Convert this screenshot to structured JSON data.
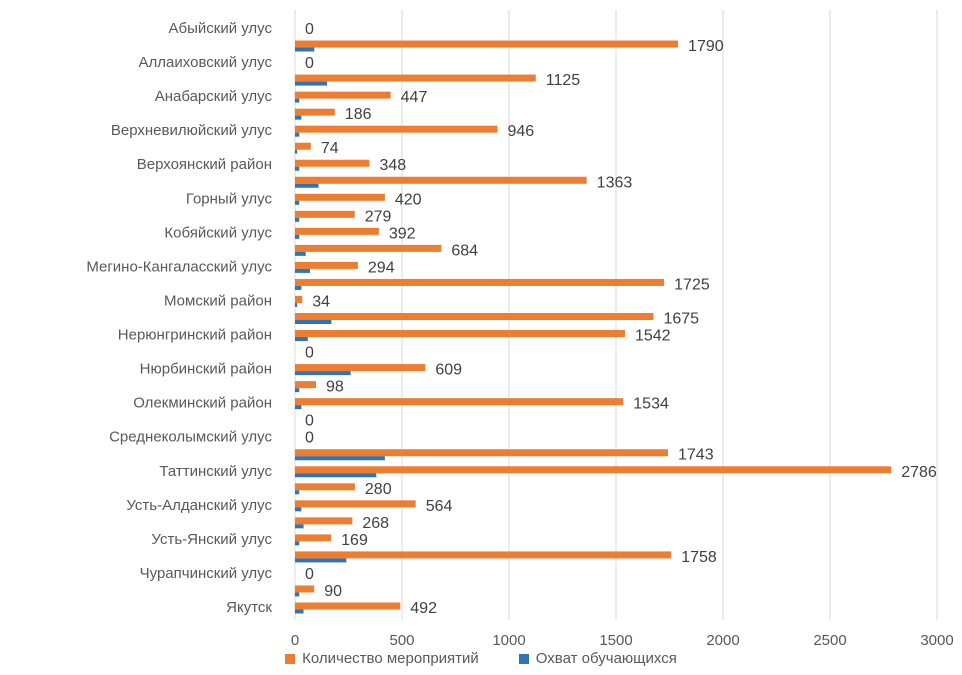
{
  "chart_data": {
    "type": "bar",
    "orientation": "horizontal",
    "xlim": [
      0,
      3000
    ],
    "x_ticks": [
      "0",
      "500",
      "1000",
      "1500",
      "2000",
      "2500",
      "3000"
    ],
    "grid": true,
    "legend_position": "bottom",
    "labeled_rows": [
      "Абыйский улус",
      "Аллаиховский улус",
      "Анабарский улус",
      "Верхневилюйский улус",
      "Верхоянский район",
      "Горный улус",
      "Кобяйский улус",
      "Мегино-Кангаласский улус",
      "Момский район",
      "Нерюнгринский район",
      "Нюрбинский район",
      "Олекминский район",
      "Среднеколымский улус",
      "Таттинский улус",
      "Усть-Алданский улус",
      "Усть-Янский улус",
      "Чурапчинский улус",
      "Якутск"
    ],
    "rows": [
      {
        "label": "Абыйский улус",
        "events": 0,
        "events_label": "0",
        "reach": 0
      },
      {
        "label": "",
        "events": 1790,
        "events_label": "1790",
        "reach": 90
      },
      {
        "label": "Аллаиховский улус",
        "events": 0,
        "events_label": "0",
        "reach": 0
      },
      {
        "label": "",
        "events": 1125,
        "events_label": "1125",
        "reach": 150
      },
      {
        "label": "Анабарский улус",
        "events": 447,
        "events_label": "447",
        "reach": 20
      },
      {
        "label": "",
        "events": 186,
        "events_label": "186",
        "reach": 30
      },
      {
        "label": "Верхневилюйский улус",
        "events": 946,
        "events_label": "946",
        "reach": 20
      },
      {
        "label": "",
        "events": 74,
        "events_label": "74",
        "reach": 10
      },
      {
        "label": "Верхоянский район",
        "events": 348,
        "events_label": "348",
        "reach": 20
      },
      {
        "label": "",
        "events": 1363,
        "events_label": "1363",
        "reach": 110
      },
      {
        "label": "Горный улус",
        "events": 420,
        "events_label": "420",
        "reach": 20
      },
      {
        "label": "",
        "events": 279,
        "events_label": "279",
        "reach": 20
      },
      {
        "label": "Кобяйский улус",
        "events": 392,
        "events_label": "392",
        "reach": 20
      },
      {
        "label": "",
        "events": 684,
        "events_label": "684",
        "reach": 50
      },
      {
        "label": "Мегино-Кангаласский улус",
        "events": 294,
        "events_label": "294",
        "reach": 70
      },
      {
        "label": "",
        "events": 1725,
        "events_label": "1725",
        "reach": 30
      },
      {
        "label": "Момский район",
        "events": 34,
        "events_label": "34",
        "reach": 10
      },
      {
        "label": "",
        "events": 1675,
        "events_label": "1675",
        "reach": 170
      },
      {
        "label": "Нерюнгринский район",
        "events": 1542,
        "events_label": "1542",
        "reach": 60
      },
      {
        "label": "",
        "events": 0,
        "events_label": "0",
        "reach": 0
      },
      {
        "label": "Нюрбинский район",
        "events": 609,
        "events_label": "609",
        "reach": 260
      },
      {
        "label": "",
        "events": 98,
        "events_label": "98",
        "reach": 20
      },
      {
        "label": "Олекминский район",
        "events": 1534,
        "events_label": "1534",
        "reach": 30
      },
      {
        "label": "",
        "events": 0,
        "events_label": "0",
        "reach": 0
      },
      {
        "label": "Среднеколымский улус",
        "events": 0,
        "events_label": "0",
        "reach": 0
      },
      {
        "label": "",
        "events": 1743,
        "events_label": "1743",
        "reach": 420
      },
      {
        "label": "Таттинский улус",
        "events": 2786,
        "events_label": "2786",
        "reach": 380
      },
      {
        "label": "",
        "events": 280,
        "events_label": "280",
        "reach": 20
      },
      {
        "label": "Усть-Алданский улус",
        "events": 564,
        "events_label": "564",
        "reach": 30
      },
      {
        "label": "",
        "events": 268,
        "events_label": "268",
        "reach": 40
      },
      {
        "label": "Усть-Янский улус",
        "events": 169,
        "events_label": "169",
        "reach": 20
      },
      {
        "label": "",
        "events": 1758,
        "events_label": "1758",
        "reach": 240
      },
      {
        "label": "Чурапчинский улус",
        "events": 0,
        "events_label": "0",
        "reach": 0
      },
      {
        "label": "",
        "events": 90,
        "events_label": "90",
        "reach": 20
      },
      {
        "label": "Якутск",
        "events": 492,
        "events_label": "492",
        "reach": 40
      }
    ],
    "series": [
      {
        "name": "Количество мероприятий",
        "key": "events",
        "color": "#ED7D31"
      },
      {
        "name": "Охват обучающихся",
        "key": "reach",
        "color": "#2E75B6"
      }
    ]
  },
  "legend": {
    "events_label": "Количество мероприятий",
    "reach_label": "Охват обучающихся",
    "events_color": "#ED7D31",
    "reach_color": "#2E75B6"
  }
}
